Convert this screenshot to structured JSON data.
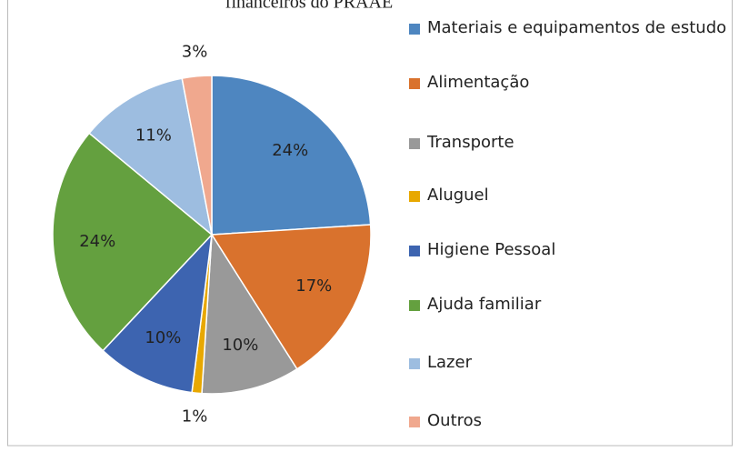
{
  "chart_data": {
    "type": "pie",
    "title": "financeiros do PRAAE",
    "categories": [
      "Materiais e equipamentos de estudo",
      "Alimentação",
      "Transporte",
      "Aluguel",
      "Higiene Pessoal",
      "Ajuda familiar",
      "Lazer",
      "Outros"
    ],
    "values": [
      24,
      17,
      10,
      1,
      10,
      24,
      11,
      3
    ],
    "value_labels": [
      "24%",
      "17%",
      "10%",
      "1%",
      "10%",
      "24%",
      "11%",
      "3%"
    ],
    "colors": [
      "#4e86c0",
      "#d9722d",
      "#999999",
      "#e8a800",
      "#3d64b0",
      "#64a03f",
      "#9dbde0",
      "#f0a88e"
    ]
  }
}
